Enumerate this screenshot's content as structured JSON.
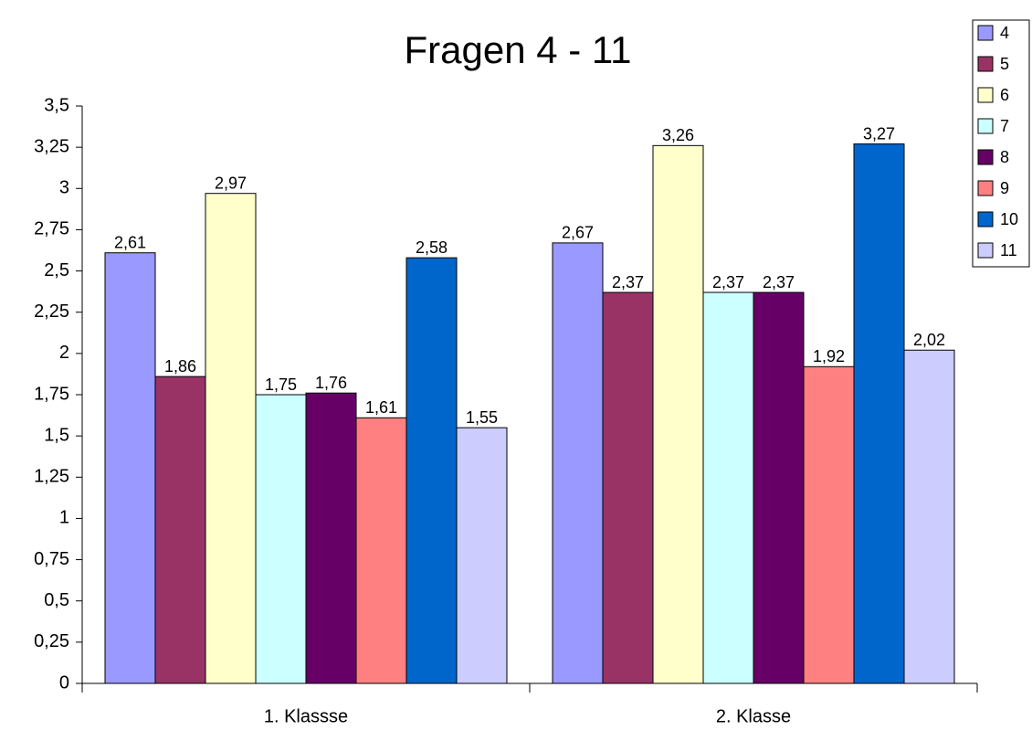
{
  "chart_data": {
    "type": "bar",
    "title": "Fragen 4 - 11",
    "categories": [
      "1. Klassse",
      "2. Klasse"
    ],
    "series": [
      {
        "name": "4",
        "color": "#9999ff",
        "values": [
          2.61,
          2.67
        ],
        "value_labels": [
          "2,61",
          "2,67"
        ]
      },
      {
        "name": "5",
        "color": "#993366",
        "values": [
          1.86,
          2.37
        ],
        "value_labels": [
          "1,86",
          "2,37"
        ]
      },
      {
        "name": "6",
        "color": "#ffffcc",
        "values": [
          2.97,
          3.26
        ],
        "value_labels": [
          "2,97",
          "3,26"
        ]
      },
      {
        "name": "7",
        "color": "#ccffff",
        "values": [
          1.75,
          2.37
        ],
        "value_labels": [
          "1,75",
          "2,37"
        ]
      },
      {
        "name": "8",
        "color": "#660066",
        "values": [
          1.76,
          2.37
        ],
        "value_labels": [
          "1,76",
          "2,37"
        ]
      },
      {
        "name": "9",
        "color": "#ff8080",
        "values": [
          1.61,
          1.92
        ],
        "value_labels": [
          "1,61",
          "1,92"
        ]
      },
      {
        "name": "10",
        "color": "#0066cc",
        "values": [
          2.58,
          3.27
        ],
        "value_labels": [
          "2,58",
          "3,27"
        ]
      },
      {
        "name": "11",
        "color": "#ccccff",
        "values": [
          1.55,
          2.02
        ],
        "value_labels": [
          "1,55",
          "2,02"
        ]
      }
    ],
    "ylim": [
      0,
      3.5
    ],
    "yticks": [
      0,
      {
        "value": 0.25,
        "label": "0,25"
      },
      {
        "value": 0.5,
        "label": "0,5"
      },
      {
        "value": 0.75,
        "label": "0,75"
      },
      1,
      {
        "value": 1.25,
        "label": "1,25"
      },
      {
        "value": 1.5,
        "label": "1,5"
      },
      {
        "value": 1.75,
        "label": "1,75"
      },
      2,
      {
        "value": 2.25,
        "label": "2,25"
      },
      {
        "value": 2.5,
        "label": "2,5"
      },
      {
        "value": 2.75,
        "label": "2,75"
      },
      3,
      {
        "value": 3.25,
        "label": "3,25"
      },
      {
        "value": 3.5,
        "label": "3,5"
      }
    ],
    "legend": "top-right",
    "grid": false
  }
}
